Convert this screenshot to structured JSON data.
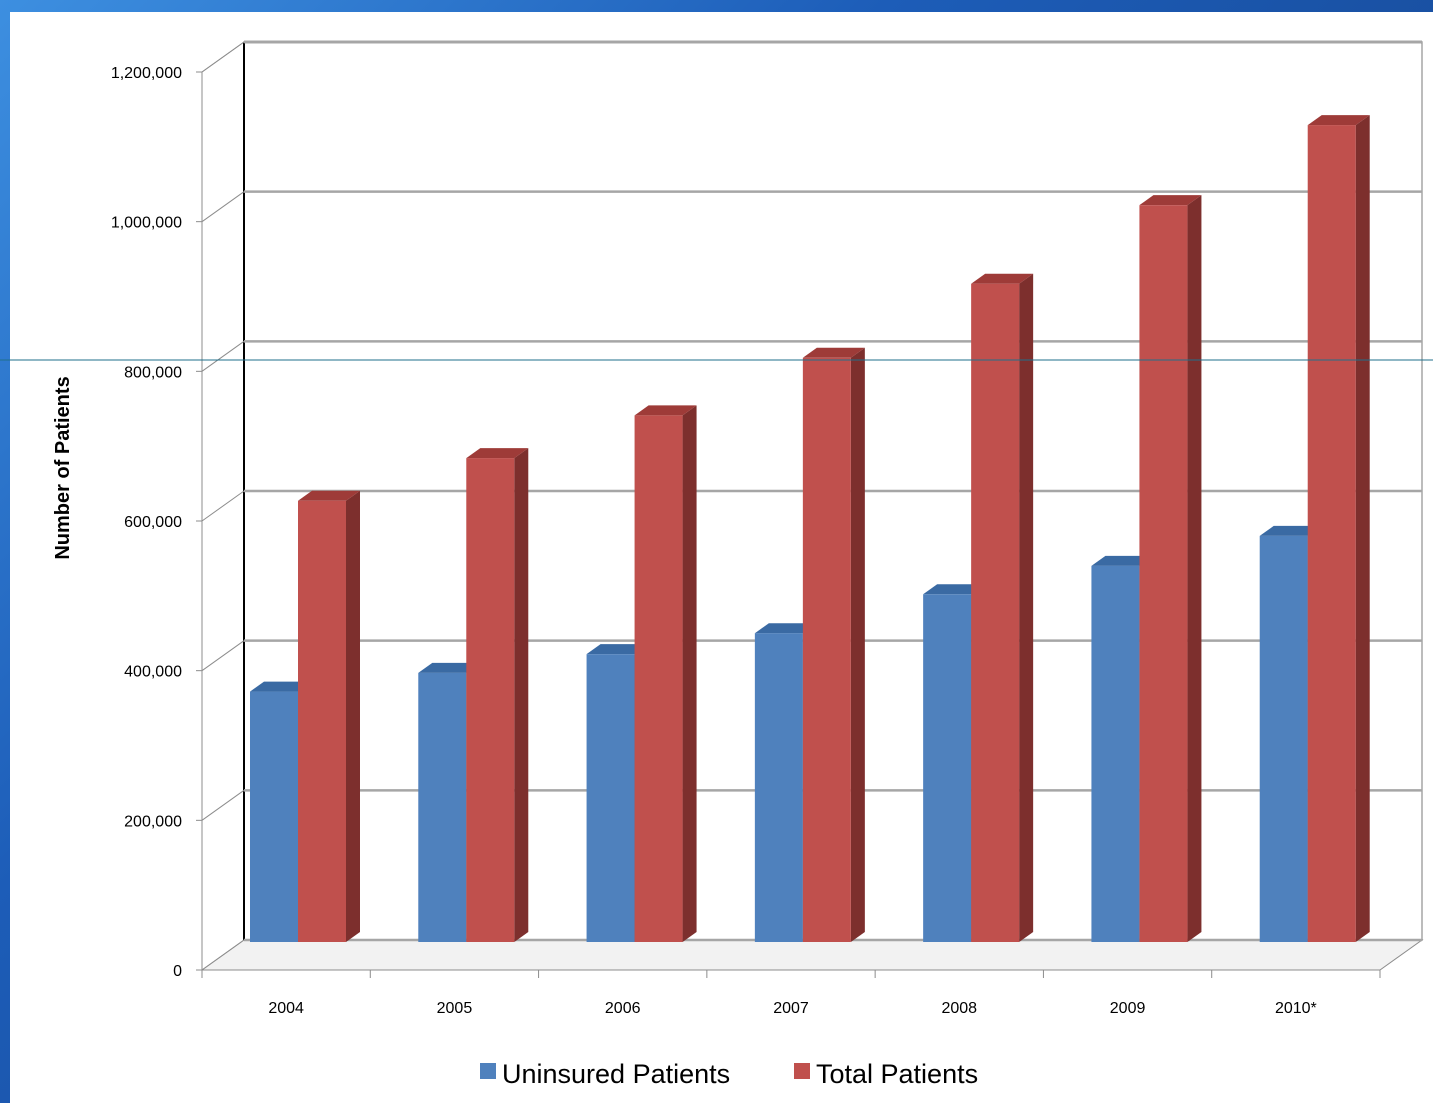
{
  "chart_data": {
    "type": "bar",
    "categories": [
      "2004",
      "2005",
      "2006",
      "2007",
      "2008",
      "2009",
      "2010*"
    ],
    "series": [
      {
        "name": "Uninsured Patients",
        "values": [
          340000,
          365000,
          390000,
          418000,
          470000,
          508000,
          548000
        ]
      },
      {
        "name": "Total Patients",
        "values": [
          595000,
          652000,
          709000,
          786000,
          885000,
          990000,
          1097000
        ]
      }
    ],
    "title": "",
    "xlabel": "",
    "ylabel": "Number of Patients",
    "ylim": [
      0,
      1200000
    ],
    "y_ticks": [
      0,
      200000,
      400000,
      600000,
      800000,
      1000000,
      1200000
    ],
    "y_tick_labels": [
      "0",
      "200,000",
      "400,000",
      "600,000",
      "800,000",
      "1,000,000",
      "1,200,000"
    ],
    "grid": true,
    "legend_position": "bottom",
    "three_d": true
  },
  "colors": {
    "uninsured": "#4f81bd",
    "uninsured_top": "#3a6aa3",
    "total": "#c0504d",
    "total_side": "#7d2f2d",
    "total_top": "#9e3b38",
    "slide_background": "#1d5db8",
    "gridline": "#a6a6a6"
  }
}
